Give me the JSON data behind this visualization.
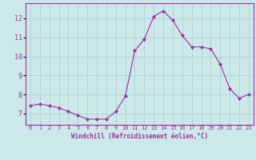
{
  "x": [
    0,
    1,
    2,
    3,
    4,
    5,
    6,
    7,
    8,
    9,
    10,
    11,
    12,
    13,
    14,
    15,
    16,
    17,
    18,
    19,
    20,
    21,
    22,
    23
  ],
  "y": [
    7.4,
    7.5,
    7.4,
    7.3,
    7.1,
    6.9,
    6.7,
    6.7,
    6.7,
    7.1,
    7.9,
    10.3,
    10.9,
    12.1,
    12.4,
    11.9,
    11.1,
    10.5,
    10.5,
    10.4,
    9.6,
    8.3,
    7.8,
    8.0
  ],
  "line_color": "#993399",
  "marker": "D",
  "marker_size": 2.0,
  "background_color": "#cce8ea",
  "grid_color": "#aacccc",
  "xlabel": "Windchill (Refroidissement éolien,°C)",
  "xlabel_color": "#993399",
  "tick_color": "#993399",
  "spine_color": "#993399",
  "ylim": [
    6.4,
    12.8
  ],
  "xlim": [
    -0.5,
    23.5
  ],
  "yticks": [
    7,
    8,
    9,
    10,
    11,
    12
  ],
  "xticks": [
    0,
    1,
    2,
    3,
    4,
    5,
    6,
    7,
    8,
    9,
    10,
    11,
    12,
    13,
    14,
    15,
    16,
    17,
    18,
    19,
    20,
    21,
    22,
    23
  ]
}
